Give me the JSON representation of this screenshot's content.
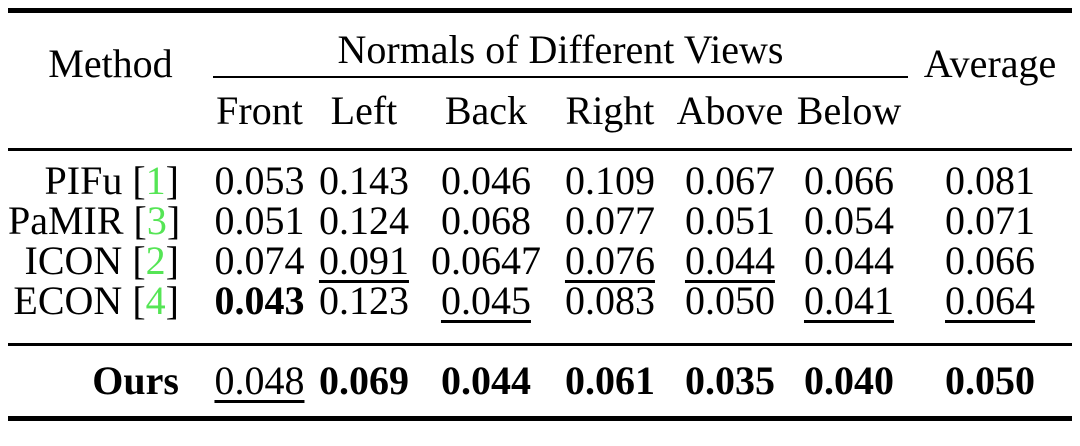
{
  "colors": {
    "background": "#ffffff",
    "text": "#000000",
    "citation_green": "#55e555"
  },
  "table": {
    "header": {
      "method": "Method",
      "group": "Normals of Different Views",
      "average": "Average",
      "views": [
        "Front",
        "Left",
        "Back",
        "Right",
        "Above",
        "Below"
      ]
    },
    "rows": [
      {
        "method": "PIFu",
        "cite": "1",
        "values": [
          "0.053",
          "0.143",
          "0.046",
          "0.109",
          "0.067",
          "0.066"
        ],
        "styles": [
          "plain",
          "plain",
          "plain",
          "plain",
          "plain",
          "plain"
        ],
        "average": "0.081",
        "average_style": "plain"
      },
      {
        "method": "PaMIR",
        "cite": "3",
        "values": [
          "0.051",
          "0.124",
          "0.068",
          "0.077",
          "0.051",
          "0.054"
        ],
        "styles": [
          "plain",
          "plain",
          "plain",
          "plain",
          "plain",
          "plain"
        ],
        "average": "0.071",
        "average_style": "plain"
      },
      {
        "method": "ICON",
        "cite": "2",
        "values": [
          "0.074",
          "0.091",
          "0.0647",
          "0.076",
          "0.044",
          "0.044"
        ],
        "styles": [
          "plain",
          "underline",
          "plain",
          "underline",
          "underline",
          "plain"
        ],
        "average": "0.066",
        "average_style": "plain"
      },
      {
        "method": "ECON",
        "cite": "4",
        "values": [
          "0.043",
          "0.123",
          "0.045",
          "0.083",
          "0.050",
          "0.041"
        ],
        "styles": [
          "bold",
          "plain",
          "underline",
          "plain",
          "plain",
          "underline"
        ],
        "average": "0.064",
        "average_style": "underline"
      }
    ],
    "ours": {
      "method": "Ours",
      "values": [
        "0.048",
        "0.069",
        "0.044",
        "0.061",
        "0.035",
        "0.040"
      ],
      "styles": [
        "underline",
        "bold",
        "bold",
        "bold",
        "bold",
        "bold"
      ],
      "average": "0.050",
      "average_style": "bold"
    }
  }
}
